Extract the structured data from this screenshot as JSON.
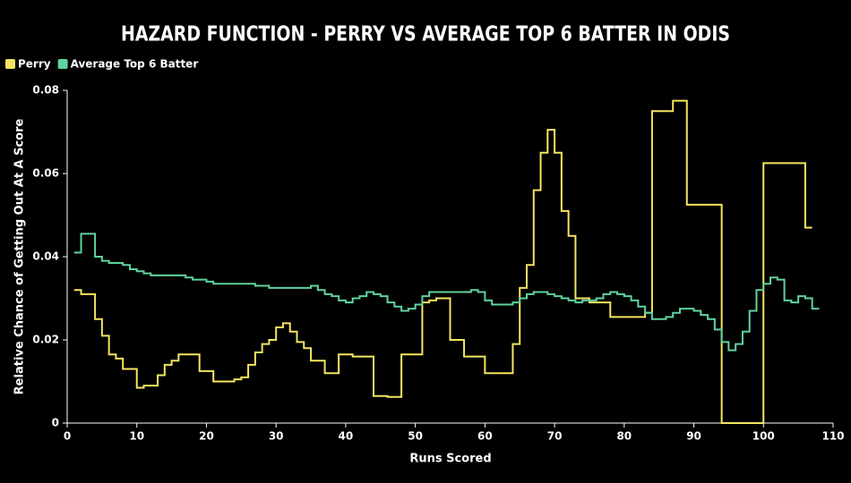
{
  "chart_data": {
    "type": "step",
    "title": "HAZARD FUNCTION - PERRY VS AVERAGE TOP 6 BATTER IN ODIS",
    "xlabel": "Runs Scored",
    "ylabel": "Relative Chance of Getting Out At A Score",
    "xlim": [
      0,
      110
    ],
    "xticks": [
      0,
      10,
      20,
      30,
      40,
      50,
      60,
      70,
      80,
      90,
      100,
      110
    ],
    "ylim": [
      0,
      0.08
    ],
    "yticks": [
      0,
      0.02,
      0.04,
      0.06,
      0.08
    ],
    "legend": "top-left",
    "series": [
      {
        "name": "Perry",
        "color": "#f4e55f",
        "x": [
          1,
          2,
          3,
          4,
          5,
          6,
          7,
          8,
          9,
          10,
          11,
          12,
          13,
          14,
          15,
          16,
          17,
          18,
          19,
          20,
          21,
          22,
          23,
          24,
          25,
          26,
          27,
          28,
          29,
          30,
          31,
          32,
          33,
          34,
          35,
          36,
          37,
          38,
          39,
          40,
          41,
          42,
          43,
          44,
          45,
          46,
          47,
          48,
          49,
          50,
          51,
          52,
          53,
          54,
          55,
          56,
          57,
          58,
          59,
          60,
          61,
          62,
          63,
          64,
          65,
          66,
          67,
          68,
          69,
          70,
          71,
          72,
          73,
          74,
          75,
          76,
          77,
          78,
          79,
          80,
          81,
          82,
          83,
          84,
          85,
          86,
          87,
          88,
          89,
          90,
          91,
          92,
          93,
          94,
          95,
          96,
          97,
          98,
          99,
          100,
          101,
          102,
          103,
          104,
          105,
          106
        ],
        "values": [
          0.032,
          0.031,
          0.031,
          0.025,
          0.021,
          0.0165,
          0.0155,
          0.013,
          0.013,
          0.0085,
          0.009,
          0.009,
          0.0115,
          0.014,
          0.015,
          0.0165,
          0.0165,
          0.0165,
          0.0125,
          0.0125,
          0.01,
          0.01,
          0.01,
          0.0105,
          0.011,
          0.014,
          0.017,
          0.019,
          0.02,
          0.023,
          0.024,
          0.022,
          0.0195,
          0.018,
          0.015,
          0.015,
          0.012,
          0.012,
          0.0165,
          0.0165,
          0.016,
          0.016,
          0.016,
          0.0065,
          0.0065,
          0.0063,
          0.0063,
          0.0165,
          0.0165,
          0.0165,
          0.029,
          0.0295,
          0.03,
          0.03,
          0.02,
          0.02,
          0.016,
          0.016,
          0.016,
          0.012,
          0.012,
          0.012,
          0.012,
          0.019,
          0.0325,
          0.038,
          0.056,
          0.065,
          0.0705,
          0.065,
          0.051,
          0.045,
          0.03,
          0.03,
          0.029,
          0.029,
          0.029,
          0.0255,
          0.0255,
          0.0255,
          0.0255,
          0.0255,
          0.0265,
          0.075,
          0.075,
          0.075,
          0.0775,
          0.0775,
          0.0525,
          0.0525,
          0.0525,
          0.0525,
          0.0525,
          0,
          0,
          0,
          0,
          0,
          0,
          0.0625,
          0.0625,
          0.0625,
          0.0625,
          0.0625,
          0.0625,
          0.047
        ]
      },
      {
        "name": "Average Top 6 Batter",
        "color": "#5fd39e",
        "x": [
          1,
          2,
          3,
          4,
          5,
          6,
          7,
          8,
          9,
          10,
          11,
          12,
          13,
          14,
          15,
          16,
          17,
          18,
          19,
          20,
          21,
          22,
          23,
          24,
          25,
          26,
          27,
          28,
          29,
          30,
          31,
          32,
          33,
          34,
          35,
          36,
          37,
          38,
          39,
          40,
          41,
          42,
          43,
          44,
          45,
          46,
          47,
          48,
          49,
          50,
          51,
          52,
          53,
          54,
          55,
          56,
          57,
          58,
          59,
          60,
          61,
          62,
          63,
          64,
          65,
          66,
          67,
          68,
          69,
          70,
          71,
          72,
          73,
          74,
          75,
          76,
          77,
          78,
          79,
          80,
          81,
          82,
          83,
          84,
          85,
          86,
          87,
          88,
          89,
          90,
          91,
          92,
          93,
          94,
          95,
          96,
          97,
          98,
          99,
          100,
          101,
          102,
          103,
          104,
          105,
          106,
          107
        ],
        "values": [
          0.041,
          0.0455,
          0.0455,
          0.04,
          0.039,
          0.0385,
          0.0385,
          0.038,
          0.037,
          0.0365,
          0.036,
          0.0355,
          0.0355,
          0.0355,
          0.0355,
          0.0355,
          0.035,
          0.0345,
          0.0345,
          0.034,
          0.0335,
          0.0335,
          0.0335,
          0.0335,
          0.0335,
          0.0335,
          0.033,
          0.033,
          0.0325,
          0.0325,
          0.0325,
          0.0325,
          0.0325,
          0.0325,
          0.033,
          0.032,
          0.031,
          0.0305,
          0.0295,
          0.029,
          0.03,
          0.0305,
          0.0315,
          0.031,
          0.0305,
          0.029,
          0.028,
          0.027,
          0.0275,
          0.0285,
          0.0305,
          0.0315,
          0.0315,
          0.0315,
          0.0315,
          0.0315,
          0.0315,
          0.032,
          0.0315,
          0.0295,
          0.0285,
          0.0285,
          0.0285,
          0.029,
          0.03,
          0.031,
          0.0315,
          0.0315,
          0.031,
          0.0305,
          0.03,
          0.0295,
          0.029,
          0.0295,
          0.0295,
          0.03,
          0.031,
          0.0315,
          0.031,
          0.0305,
          0.0295,
          0.028,
          0.0265,
          0.025,
          0.025,
          0.0255,
          0.0265,
          0.0275,
          0.0275,
          0.027,
          0.026,
          0.025,
          0.0225,
          0.0195,
          0.0175,
          0.019,
          0.022,
          0.027,
          0.032,
          0.0335,
          0.035,
          0.0345,
          0.0295,
          0.029,
          0.0305,
          0.03,
          0.0275
        ]
      }
    ]
  }
}
